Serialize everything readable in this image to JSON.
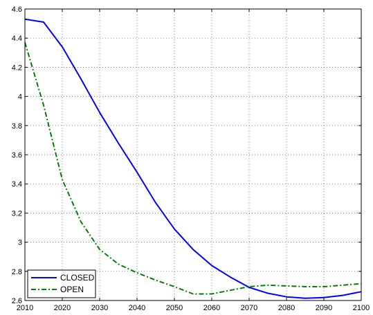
{
  "chart_data": {
    "type": "line",
    "title": "",
    "xlabel": "",
    "ylabel": "",
    "xlim": [
      2010,
      2100
    ],
    "ylim": [
      2.6,
      4.6
    ],
    "xticks": [
      "2010",
      "2020",
      "2030",
      "2040",
      "2050",
      "2060",
      "2070",
      "2080",
      "2090",
      "2100"
    ],
    "yticks": [
      "2.6",
      "2.8",
      "3",
      "3.2",
      "3.4",
      "3.6",
      "3.8",
      "4",
      "4.2",
      "4.4",
      "4.6"
    ],
    "grid": true,
    "legend_position": "bottom-left",
    "x": [
      2010,
      2015,
      2020,
      2025,
      2030,
      2035,
      2040,
      2045,
      2050,
      2055,
      2060,
      2065,
      2070,
      2075,
      2080,
      2085,
      2090,
      2095,
      2100
    ],
    "series": [
      {
        "name": "CLOSED",
        "color": "#0000ff",
        "style": "solid",
        "values": [
          4.53,
          4.51,
          4.34,
          4.12,
          3.89,
          3.68,
          3.48,
          3.27,
          3.09,
          2.95,
          2.84,
          2.76,
          2.69,
          2.65,
          2.625,
          2.615,
          2.62,
          2.635,
          2.66
        ]
      },
      {
        "name": "OPEN",
        "color": "#008000",
        "style": "dashdot",
        "values": [
          4.37,
          3.94,
          3.43,
          3.14,
          2.95,
          2.85,
          2.79,
          2.74,
          2.695,
          2.645,
          2.645,
          2.67,
          2.695,
          2.705,
          2.7,
          2.695,
          2.695,
          2.705,
          2.715
        ]
      }
    ]
  }
}
